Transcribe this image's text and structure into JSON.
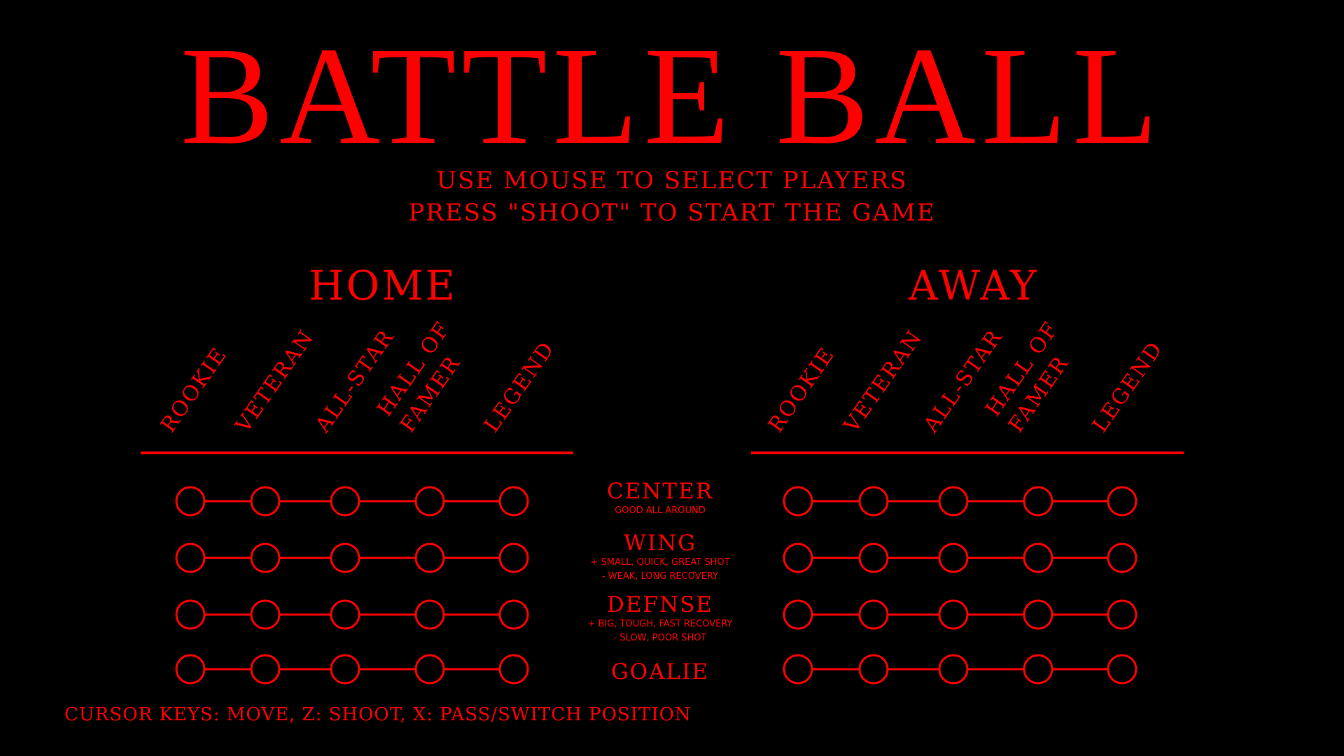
{
  "title": "BATTLE BALL",
  "instructions": {
    "line1": "USE MOUSE TO SELECT PLAYERS",
    "line2": "PRESS \"SHOOT\" TO START THE GAME"
  },
  "teams": {
    "home": {
      "label": "HOME",
      "ranks": [
        "ROOKIE",
        "VETERAN",
        "ALL-STAR",
        "HALL OF\nFAMER",
        "LEGEND"
      ]
    },
    "away": {
      "label": "AWAY",
      "ranks": [
        "ROOKIE",
        "VETERAN",
        "ALL-STAR",
        "HALL OF\nFAMER",
        "LEGEND"
      ]
    }
  },
  "positions": [
    {
      "name": "CENTER",
      "desc": [
        "GOOD ALL AROUND"
      ]
    },
    {
      "name": "WING",
      "desc": [
        "+ SMALL, QUICK, GREAT SHOT",
        "- WEAK, LONG RECOVERY"
      ]
    },
    {
      "name": "DEFNSE",
      "desc": [
        "+ BIG, TOUGH, FAST RECOVERY",
        "- SLOW, POOR SHOT"
      ]
    },
    {
      "name": "GOALIE",
      "desc": []
    }
  ],
  "controls": "CURSOR KEYS: MOVE, Z: SHOOT, X: PASS/SWITCH POSITION",
  "colors": {
    "background": "#000000",
    "accent": "#ff0000"
  }
}
